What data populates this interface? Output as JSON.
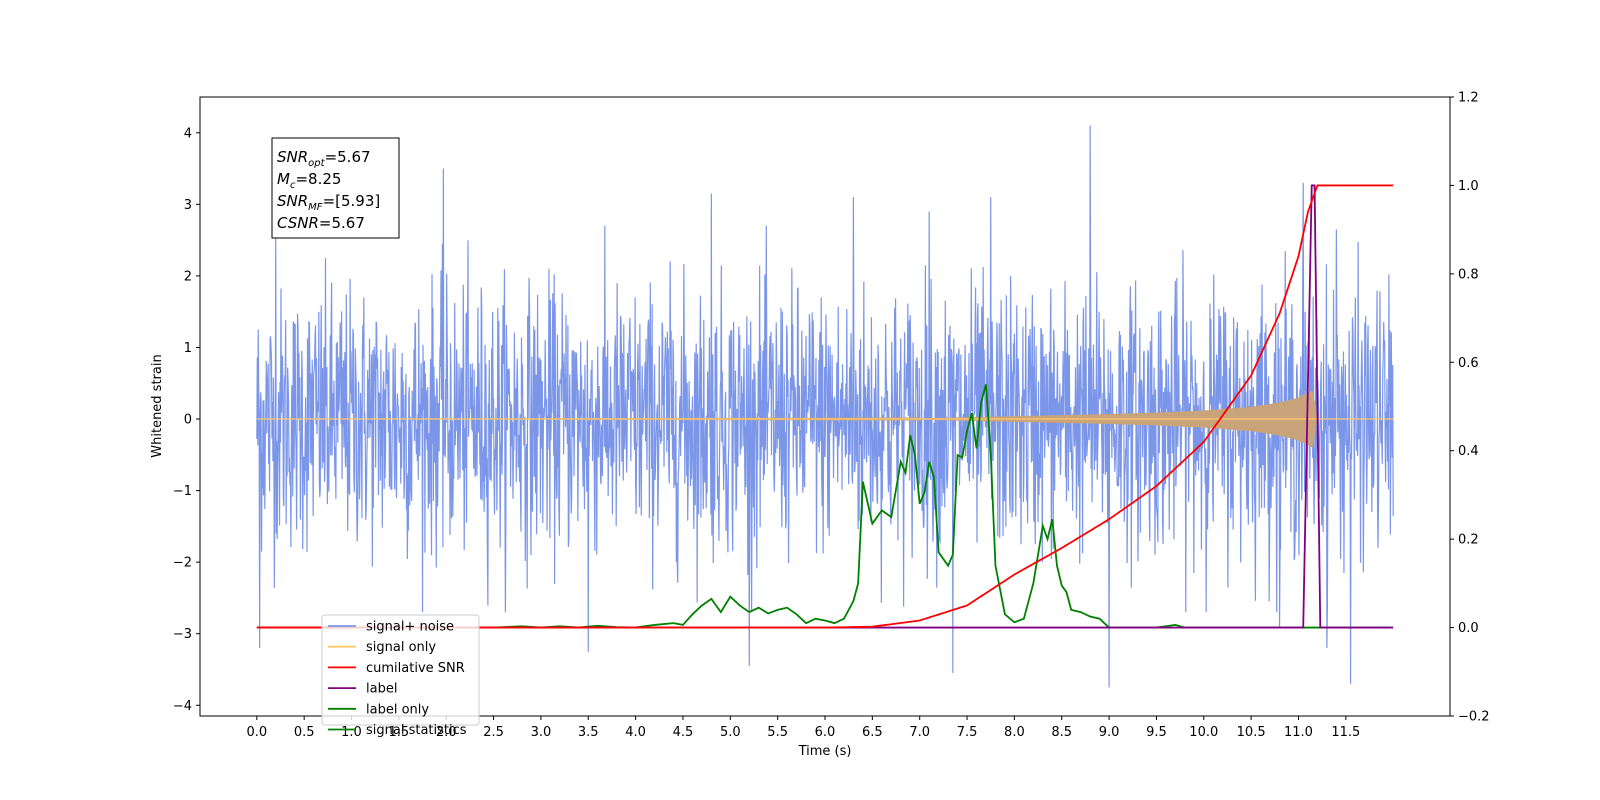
{
  "chart_data": {
    "type": "line",
    "xlabel": "Time (s)",
    "ylabel": "Whitened strain",
    "xlim": [
      -0.6,
      12.6
    ],
    "ylim": [
      -4.15,
      4.5
    ],
    "y2lim": [
      -0.2,
      1.2
    ],
    "x_ticks": [
      "0.0",
      "0.5",
      "1.0",
      "1.5",
      "2.0",
      "2.5",
      "3.0",
      "3.5",
      "4.0",
      "4.5",
      "5.0",
      "5.5",
      "6.0",
      "6.5",
      "7.0",
      "7.5",
      "8.0",
      "8.5",
      "9.0",
      "9.5",
      "10.0",
      "10.5",
      "11.0",
      "11.5"
    ],
    "y_ticks": [
      "−4",
      "−3",
      "−2",
      "−1",
      "0",
      "1",
      "2",
      "3",
      "4"
    ],
    "y2_ticks": [
      "−0.2",
      "0.0",
      "0.2",
      "0.4",
      "0.6",
      "0.8",
      "1.0",
      "1.2"
    ],
    "annotation": {
      "lines": [
        {
          "sym": "SNR",
          "sub": "opt",
          "value": "=5.67"
        },
        {
          "sym": "M",
          "sub": "c",
          "value": "=8.25"
        },
        {
          "sym": "SNR",
          "sub": "MF",
          "value": "=[5.93]"
        },
        {
          "sym": "CSNR",
          "sub": "",
          "value": "=5.67"
        }
      ]
    },
    "legend": {
      "placement": "lower-left",
      "entries": [
        {
          "label": "signal+ noise",
          "color": "#7b96e8"
        },
        {
          "label": "signal only",
          "color": "#ffc96b"
        },
        {
          "label": "cumilative SNR",
          "color": "#ff0000"
        },
        {
          "label": "label",
          "color": "#800080"
        },
        {
          "label": "label only",
          "color": "#008000"
        },
        {
          "label": "signal statistics",
          "color": "#008000"
        }
      ]
    },
    "series": [
      {
        "name": "signal+ noise",
        "axis": "left",
        "color": "#7b96e8",
        "style": "noise",
        "x_range": [
          0.0,
          12.0
        ],
        "std": 0.9,
        "peak_points": [
          [
            0.2,
            2.6
          ],
          [
            1.97,
            3.5
          ],
          [
            4.8,
            3.15
          ],
          [
            6.3,
            3.1
          ],
          [
            7.1,
            2.9
          ],
          [
            7.75,
            3.1
          ],
          [
            8.8,
            4.1
          ],
          [
            11.05,
            3.3
          ],
          [
            11.4,
            2.65
          ]
        ],
        "trough_points": [
          [
            0.03,
            -3.2
          ],
          [
            3.5,
            -3.25
          ],
          [
            5.2,
            -3.45
          ],
          [
            7.35,
            -3.55
          ],
          [
            9.0,
            -3.75
          ],
          [
            11.55,
            -3.7
          ],
          [
            10.8,
            -2.9
          ],
          [
            11.3,
            -3.2
          ]
        ]
      },
      {
        "name": "signal only",
        "axis": "left",
        "color": "#c9a37a",
        "style": "chirp",
        "x": [
          0.0,
          7.0,
          8.0,
          9.0,
          9.5,
          10.0,
          10.5,
          10.8,
          11.0,
          11.1,
          11.15,
          11.2,
          12.0
        ],
        "amplitude": [
          0.0,
          0.01,
          0.04,
          0.07,
          0.09,
          0.12,
          0.17,
          0.23,
          0.3,
          0.37,
          0.4,
          0.0,
          0.0
        ]
      },
      {
        "name": "cumilative SNR",
        "axis": "right",
        "color": "#ff0000",
        "x": [
          0.0,
          6.0,
          6.5,
          7.0,
          7.5,
          8.0,
          8.5,
          9.0,
          9.5,
          10.0,
          10.5,
          10.8,
          11.0,
          11.1,
          11.2,
          12.0
        ],
        "y": [
          0.0,
          0.0,
          0.002,
          0.016,
          0.05,
          0.12,
          0.18,
          0.245,
          0.32,
          0.42,
          0.57,
          0.71,
          0.84,
          0.94,
          1.0,
          1.0
        ]
      },
      {
        "name": "label",
        "axis": "right",
        "color": "#800080",
        "x": [
          0.0,
          11.05,
          11.14,
          11.17,
          11.23,
          12.0
        ],
        "y": [
          0.0,
          0.0,
          1.0,
          1.0,
          0.0,
          0.0
        ]
      },
      {
        "name": "signal statistics",
        "axis": "right",
        "color": "#008000",
        "x": [
          0.0,
          2.5,
          2.8,
          3.0,
          3.2,
          3.4,
          3.6,
          3.8,
          4.0,
          4.2,
          4.4,
          4.5,
          4.6,
          4.7,
          4.8,
          4.9,
          5.0,
          5.1,
          5.2,
          5.3,
          5.4,
          5.5,
          5.6,
          5.7,
          5.8,
          5.9,
          6.0,
          6.1,
          6.2,
          6.3,
          6.35,
          6.4,
          6.5,
          6.6,
          6.7,
          6.8,
          6.85,
          6.9,
          6.95,
          7.0,
          7.05,
          7.1,
          7.15,
          7.2,
          7.3,
          7.35,
          7.4,
          7.45,
          7.5,
          7.55,
          7.6,
          7.65,
          7.7,
          7.75,
          7.8,
          7.9,
          8.0,
          8.1,
          8.2,
          8.3,
          8.35,
          8.4,
          8.45,
          8.5,
          8.55,
          8.6,
          8.7,
          8.8,
          8.9,
          9.0,
          9.2,
          9.5,
          9.7,
          9.8,
          9.9,
          10.0,
          11.95
        ],
        "y": [
          0.0,
          0.0,
          0.003,
          0.0,
          0.003,
          0.0,
          0.004,
          0.001,
          0.0,
          0.006,
          0.01,
          0.006,
          0.03,
          0.05,
          0.065,
          0.035,
          0.07,
          0.05,
          0.035,
          0.045,
          0.032,
          0.04,
          0.045,
          0.03,
          0.01,
          0.02,
          0.016,
          0.01,
          0.02,
          0.06,
          0.1,
          0.33,
          0.235,
          0.265,
          0.25,
          0.375,
          0.35,
          0.435,
          0.39,
          0.28,
          0.305,
          0.375,
          0.34,
          0.17,
          0.14,
          0.165,
          0.39,
          0.385,
          0.445,
          0.485,
          0.405,
          0.51,
          0.55,
          0.395,
          0.14,
          0.03,
          0.012,
          0.02,
          0.1,
          0.23,
          0.2,
          0.245,
          0.14,
          0.095,
          0.08,
          0.04,
          0.035,
          0.025,
          0.02,
          0.0,
          0.0,
          0.0,
          0.006,
          0.0,
          0.0,
          0.0,
          0.0
        ]
      }
    ]
  }
}
